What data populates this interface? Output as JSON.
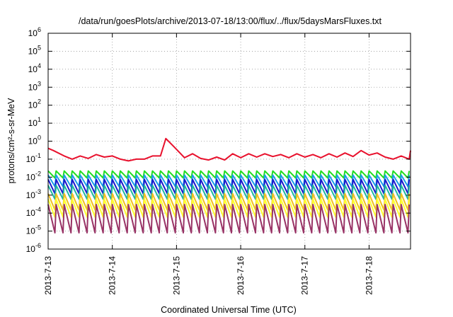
{
  "chart_data": {
    "type": "line",
    "title": "/data/run/goesPlots/archive/2013-07-18/13:00/flux/../flux/5daysMarsFluxes.txt",
    "xlabel": "Coordinated Universal Time (UTC)",
    "ylabel": "protons/cm²-s-sr-MeV",
    "yscale": "log",
    "ylim": [
      1e-06,
      1000000.0
    ],
    "xlim": [
      "2013-07-13",
      "2013-07-18 15:00"
    ],
    "grid": true,
    "x_ticks": [
      "2013-7-13",
      "2013-7-14",
      "2013-7-15",
      "2013-7-16",
      "2013-7-17",
      "2013-7-18"
    ],
    "y_ticks": [
      {
        "base": "10",
        "exp": "-6"
      },
      {
        "base": "10",
        "exp": "-5"
      },
      {
        "base": "10",
        "exp": "-4"
      },
      {
        "base": "10",
        "exp": "-3"
      },
      {
        "base": "10",
        "exp": "-2"
      },
      {
        "base": "10",
        "exp": "-1"
      },
      {
        "base": "10",
        "exp": "0"
      },
      {
        "base": "10",
        "exp": "1"
      },
      {
        "base": "10",
        "exp": "2"
      },
      {
        "base": "10",
        "exp": "3"
      },
      {
        "base": "10",
        "exp": "4"
      },
      {
        "base": "10",
        "exp": "5"
      },
      {
        "base": "10",
        "exp": "6"
      }
    ],
    "cycle_hours": 3,
    "series": [
      {
        "color": "#e8112d",
        "width": 2,
        "x_hours": [
          0,
          2,
          6,
          9,
          12,
          15,
          18,
          21,
          24,
          27,
          30,
          33,
          36,
          39,
          42,
          44,
          45,
          47,
          51,
          54,
          57,
          60,
          63,
          66,
          69,
          72,
          75,
          78,
          81,
          84,
          87,
          90,
          93,
          96,
          99,
          102,
          105,
          108,
          111,
          114,
          117,
          120,
          123,
          126,
          129,
          132,
          135,
          135.5
        ],
        "y": [
          0.4,
          0.3,
          0.15,
          0.1,
          0.15,
          0.11,
          0.18,
          0.13,
          0.15,
          0.1,
          0.08,
          0.1,
          0.1,
          0.15,
          0.15,
          1.4,
          1.0,
          0.5,
          0.12,
          0.2,
          0.11,
          0.09,
          0.13,
          0.09,
          0.2,
          0.12,
          0.2,
          0.13,
          0.2,
          0.14,
          0.18,
          0.12,
          0.2,
          0.13,
          0.18,
          0.12,
          0.2,
          0.13,
          0.22,
          0.14,
          0.3,
          0.17,
          0.22,
          0.13,
          0.1,
          0.15,
          0.1,
          0.3
        ]
      },
      {
        "color": "#22dd22",
        "width": 2,
        "peak": 0.022,
        "trough": 0.009
      },
      {
        "color": "#1a9ee8",
        "width": 2,
        "peak": 0.013,
        "trough": 0.003
      },
      {
        "color": "#1a1acc",
        "width": 2,
        "peak": 0.0075,
        "trough": 0.0012
      },
      {
        "color": "#20b8a0",
        "width": 2,
        "peak": 0.0035,
        "trough": 0.0006
      },
      {
        "color": "#f0c020",
        "width": 2,
        "peak": 0.0012,
        "trough": 0.00015
      },
      {
        "color": "#ffff30",
        "width": 2,
        "peak": 0.0006,
        "trough": 6e-05
      },
      {
        "color": "#993366",
        "width": 2,
        "peak": 0.0003,
        "trough": 8e-06
      }
    ]
  }
}
